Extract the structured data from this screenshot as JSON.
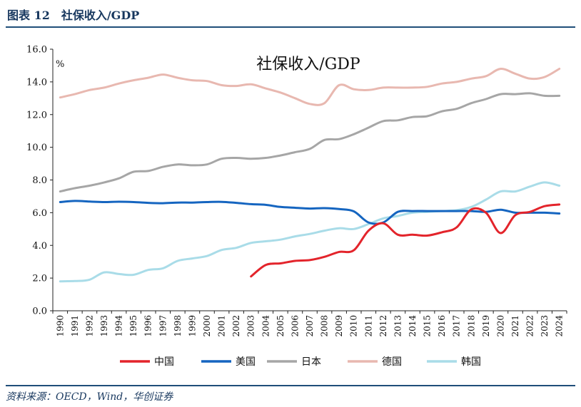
{
  "figure": {
    "label": "图表 12　社保收入/GDP",
    "source": "资料来源：OECD，Wind，华创证券"
  },
  "chart_data": {
    "type": "line",
    "title": "社保收入/GDP",
    "ylabel": "%",
    "ylim": [
      0,
      16
    ],
    "yticks": [
      "0.0",
      "2.0",
      "4.0",
      "6.0",
      "8.0",
      "10.0",
      "12.0",
      "14.0",
      "16.0"
    ],
    "x": [
      "1990",
      "1991",
      "1992",
      "1993",
      "1994",
      "1995",
      "1996",
      "1997",
      "1998",
      "1999",
      "2000",
      "2001",
      "2002",
      "2003",
      "2004",
      "2005",
      "2006",
      "2007",
      "2008",
      "2009",
      "2010",
      "2011",
      "2012",
      "2013",
      "2014",
      "2015",
      "2016",
      "2017",
      "2018",
      "2019",
      "2020",
      "2021",
      "2022",
      "2023",
      "2024"
    ],
    "legend_position": "bottom",
    "grid": false,
    "series": [
      {
        "name": "中国",
        "color": "#e3242b",
        "values": [
          null,
          null,
          null,
          null,
          null,
          null,
          null,
          null,
          null,
          null,
          null,
          null,
          null,
          2.1,
          2.8,
          2.9,
          3.05,
          3.1,
          3.3,
          3.6,
          3.7,
          4.9,
          5.35,
          4.65,
          4.65,
          4.6,
          4.8,
          5.1,
          6.2,
          6.0,
          4.75,
          5.85,
          6.05,
          6.4,
          6.5
        ]
      },
      {
        "name": "美国",
        "color": "#1565c0",
        "values": [
          6.65,
          6.72,
          6.68,
          6.65,
          6.67,
          6.65,
          6.6,
          6.58,
          6.62,
          6.62,
          6.65,
          6.66,
          6.6,
          6.52,
          6.48,
          6.35,
          6.3,
          6.25,
          6.28,
          6.22,
          6.08,
          5.4,
          5.4,
          6.05,
          6.1,
          6.1,
          6.1,
          6.1,
          6.1,
          6.05,
          6.18,
          6.0,
          6.0,
          6.0,
          5.95
        ]
      },
      {
        "name": "日本",
        "color": "#a6a6a6",
        "values": [
          7.3,
          7.5,
          7.65,
          7.85,
          8.1,
          8.5,
          8.55,
          8.8,
          8.95,
          8.9,
          8.95,
          9.3,
          9.35,
          9.3,
          9.35,
          9.5,
          9.7,
          9.9,
          10.45,
          10.5,
          10.8,
          11.2,
          11.6,
          11.65,
          11.85,
          11.9,
          12.2,
          12.35,
          12.7,
          12.95,
          13.25,
          13.25,
          13.3,
          13.15,
          13.15
        ]
      },
      {
        "name": "德国",
        "color": "#e8b8b0",
        "values": [
          13.05,
          13.25,
          13.5,
          13.65,
          13.9,
          14.1,
          14.25,
          14.45,
          14.25,
          14.1,
          14.05,
          13.8,
          13.75,
          13.85,
          13.6,
          13.35,
          13.0,
          12.65,
          12.7,
          13.8,
          13.55,
          13.5,
          13.65,
          13.65,
          13.65,
          13.7,
          13.9,
          14.0,
          14.2,
          14.35,
          14.8,
          14.5,
          14.2,
          14.3,
          14.8
        ]
      },
      {
        "name": "韩国",
        "color": "#a9dce8",
        "values": [
          1.8,
          1.82,
          1.9,
          2.35,
          2.25,
          2.2,
          2.5,
          2.6,
          3.05,
          3.2,
          3.35,
          3.72,
          3.85,
          4.15,
          4.25,
          4.35,
          4.55,
          4.7,
          4.9,
          5.05,
          5.0,
          5.3,
          5.65,
          5.8,
          6.0,
          6.05,
          6.1,
          6.15,
          6.35,
          6.8,
          7.3,
          7.3,
          7.6,
          7.85,
          7.65
        ]
      }
    ]
  }
}
